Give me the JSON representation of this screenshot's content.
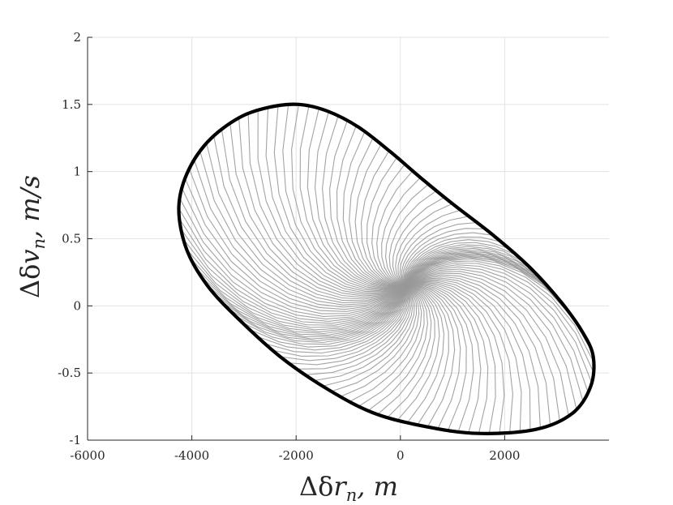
{
  "chart_data": {
    "type": "line",
    "title": "",
    "xlabel": "Δδr_n, m",
    "ylabel": "Δδv_n, m/s",
    "xlabel_parts": [
      "Δδ",
      "r",
      "n",
      ", m"
    ],
    "ylabel_parts": [
      "Δδ",
      "v",
      "n",
      ", m/s"
    ],
    "xlim": [
      -6000,
      4000
    ],
    "ylim": [
      -1,
      2
    ],
    "grid": true,
    "x_ticks": [
      -6000,
      -4000,
      -2000,
      0,
      2000
    ],
    "x_tick_labels": [
      "-6000",
      "-4000",
      "-2000",
      "0",
      "2000"
    ],
    "y_ticks": [
      -1,
      -0.5,
      0,
      0.5,
      1,
      1.5,
      2
    ],
    "y_tick_labels": [
      "-1",
      "-0.5",
      "0",
      "0.5",
      "1",
      "1.5",
      "2"
    ],
    "boundary": {
      "color": "#000000",
      "points": [
        [
          -1950,
          1.5
        ],
        [
          -1400,
          1.45
        ],
        [
          -800,
          1.33
        ],
        [
          -200,
          1.15
        ],
        [
          400,
          0.95
        ],
        [
          1000,
          0.76
        ],
        [
          1800,
          0.52
        ],
        [
          2500,
          0.28
        ],
        [
          3100,
          0.02
        ],
        [
          3500,
          -0.2
        ],
        [
          3700,
          -0.38
        ],
        [
          3650,
          -0.6
        ],
        [
          3300,
          -0.8
        ],
        [
          2600,
          -0.92
        ],
        [
          1500,
          -0.95
        ],
        [
          500,
          -0.9
        ],
        [
          -500,
          -0.8
        ],
        [
          -1400,
          -0.62
        ],
        [
          -2300,
          -0.38
        ],
        [
          -3100,
          -0.1
        ],
        [
          -3700,
          0.15
        ],
        [
          -4100,
          0.42
        ],
        [
          -4250,
          0.72
        ],
        [
          -4100,
          0.98
        ],
        [
          -3700,
          1.22
        ],
        [
          -3100,
          1.4
        ],
        [
          -2500,
          1.48
        ],
        [
          -1950,
          1.5
        ]
      ]
    },
    "trajectories": {
      "color": "#999999",
      "count": 110,
      "center": [
        100,
        0.15
      ]
    }
  }
}
